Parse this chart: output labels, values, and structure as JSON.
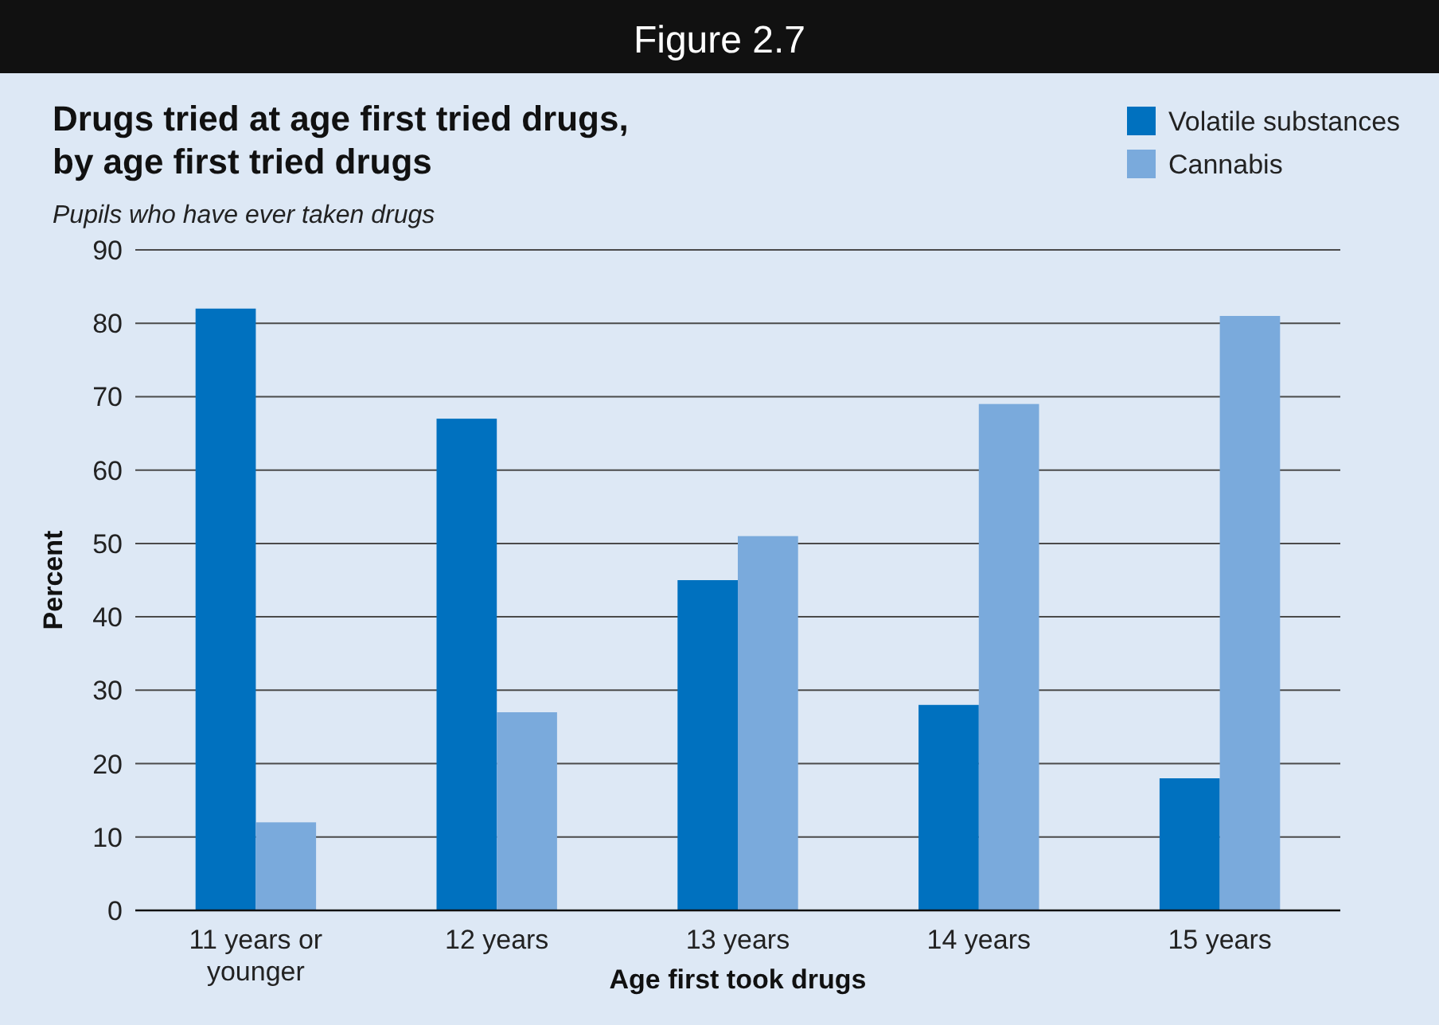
{
  "chart_data": {
    "type": "bar",
    "title": "Drugs tried at age first tried drugs,\nby age first tried drugs",
    "subtitle": "Pupils who have ever taken drugs",
    "annotations": [
      "Figure 2.7"
    ],
    "xlabel": "Age first took drugs",
    "ylabel": "Percent",
    "categories": [
      "11 years or younger",
      "12 years",
      "13 years",
      "14 years",
      "15 years"
    ],
    "series": [
      {
        "name": "Volatile substances",
        "color": "#0071bf",
        "values": [
          82,
          67,
          45,
          28,
          18
        ]
      },
      {
        "name": "Cannabis",
        "color": "#7aaadc",
        "values": [
          12,
          27,
          51,
          69,
          81
        ]
      }
    ],
    "ylim": [
      0,
      90
    ],
    "yticks": [
      0,
      10,
      20,
      30,
      40,
      50,
      60,
      70,
      80,
      90
    ],
    "grid": "y",
    "legend": "top right"
  }
}
